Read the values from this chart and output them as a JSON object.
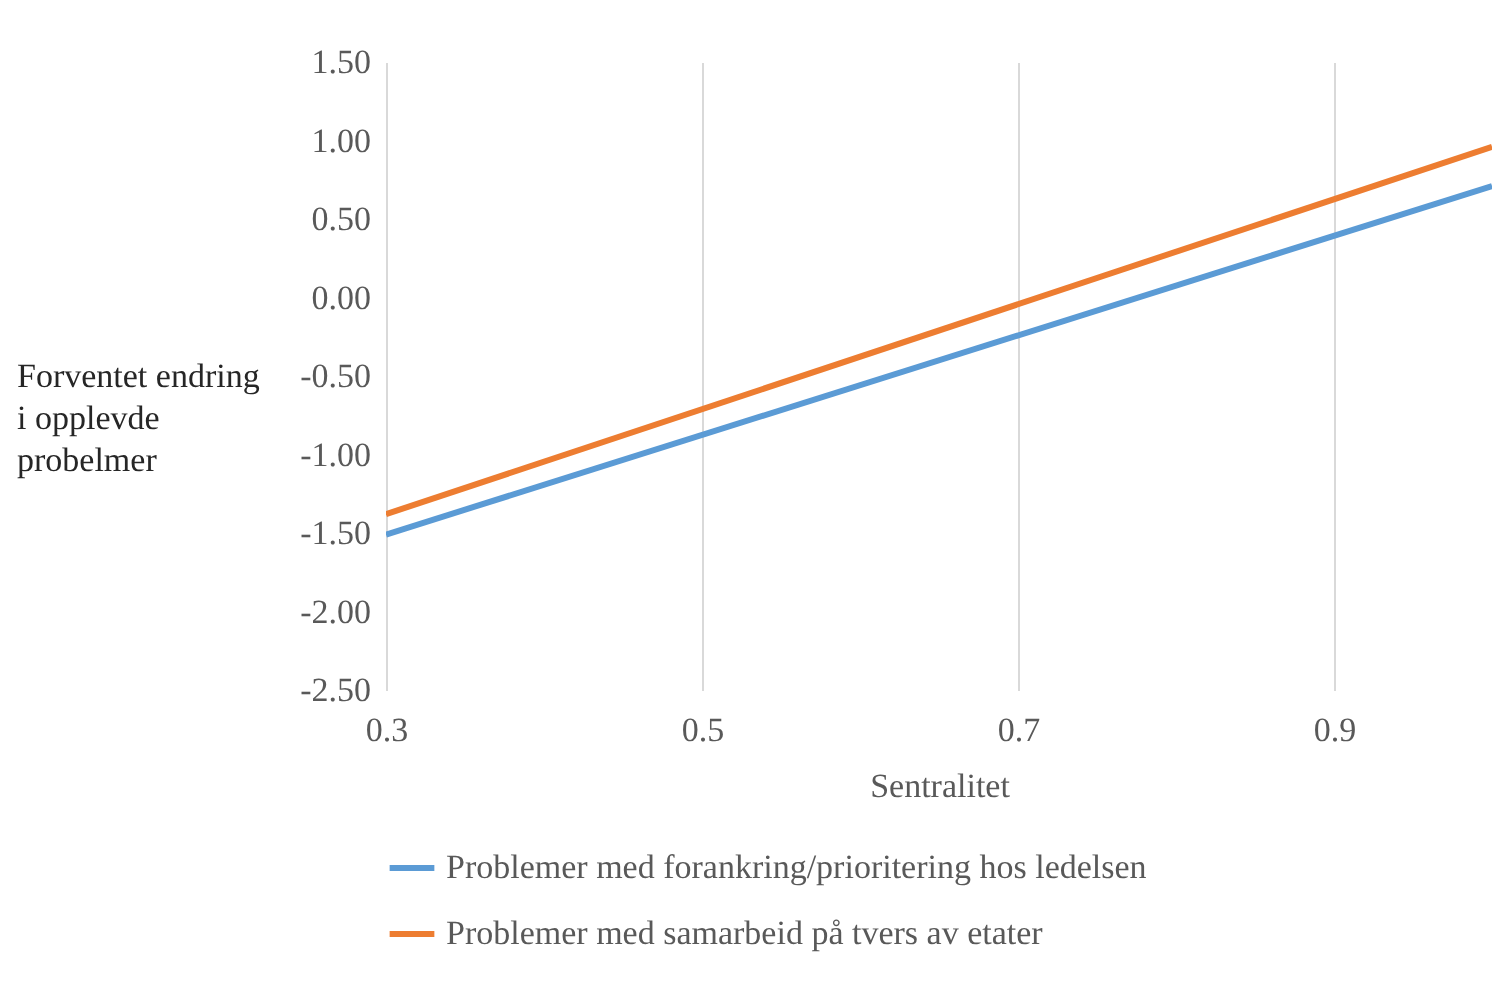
{
  "chart_data": {
    "type": "line",
    "xlabel": "Sentralitet",
    "ylabel": "Forventet endring i opplevde probelmer",
    "x": [
      0.3,
      1.0
    ],
    "series": [
      {
        "name": "Problemer med forankring/prioritering hos ledelsen",
        "color": "#5b9bd5",
        "values": [
          -1.51,
          0.71
        ]
      },
      {
        "name": "Problemer med samarbeid på tvers av etater",
        "color": "#ed7d31",
        "values": [
          -1.38,
          0.96
        ]
      }
    ],
    "xlim": [
      0.3,
      1.0
    ],
    "xticks": [
      {
        "value": 0.3,
        "label": "0.3"
      },
      {
        "value": 0.5,
        "label": "0.5"
      },
      {
        "value": 0.7,
        "label": "0.7"
      },
      {
        "value": 0.9,
        "label": "0.9"
      }
    ],
    "ylim": [
      -2.5,
      1.5
    ],
    "yticks": [
      {
        "value": -2.5,
        "label": "-2.50"
      },
      {
        "value": -2,
        "label": "-2.00"
      },
      {
        "value": -1.5,
        "label": "-1.50"
      },
      {
        "value": -1,
        "label": "-1.00"
      },
      {
        "value": -0.5,
        "label": "-0.50"
      },
      {
        "value": 0,
        "label": "0.00"
      },
      {
        "value": 0.5,
        "label": "0.50"
      },
      {
        "value": 1,
        "label": "1.00"
      },
      {
        "value": 1.5,
        "label": "1.50"
      }
    ],
    "grid": "x",
    "legend": "bottom",
    "line_style": "solid",
    "marker": "none"
  }
}
